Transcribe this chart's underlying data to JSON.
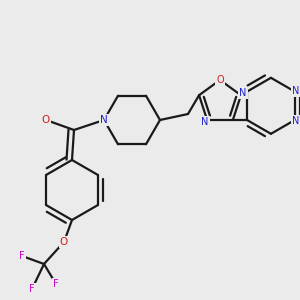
{
  "bg_color": "#ebebeb",
  "bond_color": "#1a1a1a",
  "nitrogen_color": "#2020cc",
  "oxygen_color": "#cc2020",
  "fluorine_color": "#cc00cc",
  "line_width": 1.6,
  "fig_width": 3.0,
  "fig_height": 3.0,
  "dpi": 100,
  "xlim": [
    0.0,
    3.0
  ],
  "ylim": [
    0.0,
    3.0
  ]
}
